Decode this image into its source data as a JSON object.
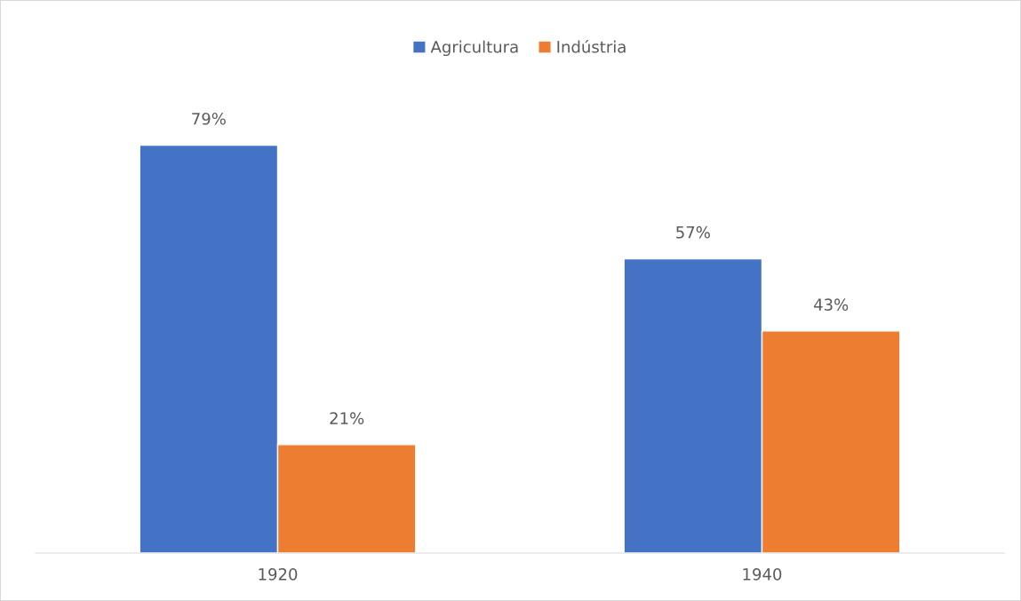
{
  "chart_data": {
    "type": "bar",
    "categories": [
      "1920",
      "1940"
    ],
    "series": [
      {
        "name": "Agricultura",
        "color": "#4472c4",
        "values": [
          79,
          57
        ],
        "value_labels": [
          "79%",
          "57%"
        ]
      },
      {
        "name": "Indústria",
        "color": "#ed7d31",
        "values": [
          21,
          43
        ],
        "value_labels": [
          "21%",
          "43%"
        ]
      }
    ],
    "legend": "top",
    "grid": false
  }
}
